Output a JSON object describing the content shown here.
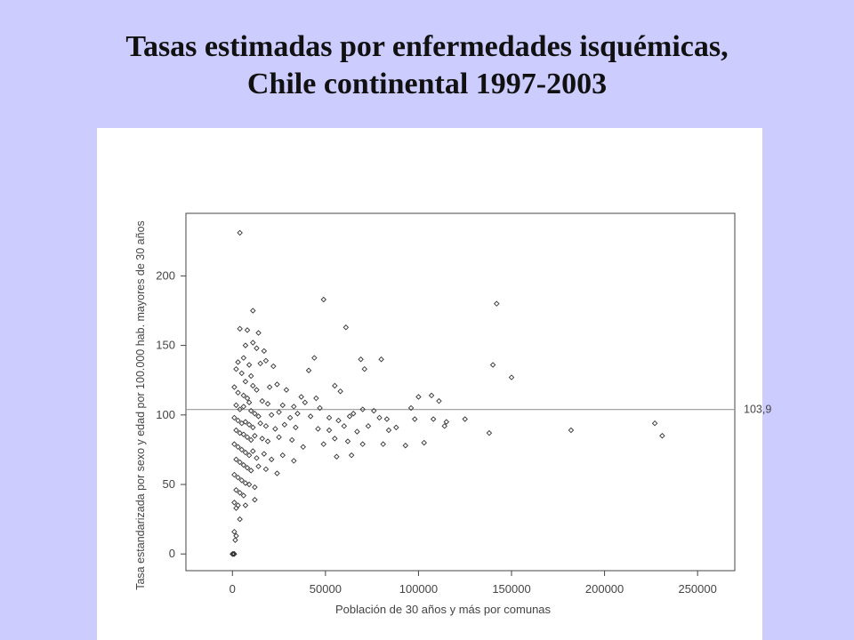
{
  "title_line1": "Tasas estimadas por enfermedades isquémicas,",
  "title_line2": "Chile continental 1997-2003",
  "chart_data": {
    "type": "scatter",
    "title": "Tasas estimadas por enfermedades isquémicas, Chile continental 1997-2003",
    "xlabel": "Población de 30 años y más por comunas",
    "ylabel": "Tasa estandarizada por sexo y edad por 100.000 hab. mayores de 30 años",
    "xlim": [
      -25000,
      270000
    ],
    "ylim": [
      -12,
      245
    ],
    "x_ticks": [
      0,
      50000,
      100000,
      150000,
      200000,
      250000
    ],
    "y_ticks": [
      0,
      50,
      100,
      150,
      200
    ],
    "reference_line": {
      "y": 103.9,
      "label": "103,9"
    },
    "grid": false,
    "points": [
      [
        4000,
        231
      ],
      [
        49000,
        183
      ],
      [
        142000,
        180
      ],
      [
        11000,
        175
      ],
      [
        61000,
        163
      ],
      [
        4000,
        162
      ],
      [
        8000,
        161
      ],
      [
        14000,
        159
      ],
      [
        11000,
        152
      ],
      [
        7000,
        150
      ],
      [
        13000,
        148
      ],
      [
        17000,
        146
      ],
      [
        18000,
        139
      ],
      [
        6000,
        141
      ],
      [
        3000,
        138
      ],
      [
        9000,
        136
      ],
      [
        15000,
        137
      ],
      [
        22000,
        135
      ],
      [
        44000,
        141
      ],
      [
        41000,
        132
      ],
      [
        69000,
        140
      ],
      [
        80000,
        140
      ],
      [
        71000,
        133
      ],
      [
        140000,
        136
      ],
      [
        150000,
        127
      ],
      [
        2000,
        133
      ],
      [
        5000,
        130
      ],
      [
        10000,
        128
      ],
      [
        7000,
        124
      ],
      [
        11000,
        121
      ],
      [
        13000,
        118
      ],
      [
        20000,
        120
      ],
      [
        24000,
        122
      ],
      [
        29000,
        118
      ],
      [
        37000,
        113
      ],
      [
        45000,
        112
      ],
      [
        55000,
        121
      ],
      [
        58000,
        117
      ],
      [
        1000,
        120
      ],
      [
        3000,
        116
      ],
      [
        6000,
        114
      ],
      [
        8000,
        112
      ],
      [
        9000,
        109
      ],
      [
        16000,
        110
      ],
      [
        19000,
        108
      ],
      [
        27000,
        107
      ],
      [
        33000,
        106
      ],
      [
        39000,
        109
      ],
      [
        47000,
        105
      ],
      [
        65000,
        101
      ],
      [
        70000,
        104
      ],
      [
        76000,
        103
      ],
      [
        100000,
        113
      ],
      [
        107000,
        114
      ],
      [
        111000,
        110
      ],
      [
        96000,
        105
      ],
      [
        2000,
        107
      ],
      [
        4000,
        104
      ],
      [
        6000,
        106
      ],
      [
        10000,
        103
      ],
      [
        12000,
        101
      ],
      [
        14000,
        99
      ],
      [
        21000,
        100
      ],
      [
        25000,
        102
      ],
      [
        31000,
        98
      ],
      [
        35000,
        101
      ],
      [
        42000,
        99
      ],
      [
        52000,
        98
      ],
      [
        57000,
        96
      ],
      [
        63000,
        99
      ],
      [
        79000,
        98
      ],
      [
        83000,
        97
      ],
      [
        88000,
        91
      ],
      [
        98000,
        97
      ],
      [
        108000,
        97
      ],
      [
        114000,
        92
      ],
      [
        125000,
        97
      ],
      [
        1000,
        98
      ],
      [
        3000,
        96
      ],
      [
        5000,
        94
      ],
      [
        7000,
        95
      ],
      [
        9000,
        93
      ],
      [
        11000,
        91
      ],
      [
        15000,
        94
      ],
      [
        18000,
        92
      ],
      [
        23000,
        90
      ],
      [
        28000,
        93
      ],
      [
        34000,
        91
      ],
      [
        46000,
        90
      ],
      [
        52000,
        89
      ],
      [
        60000,
        92
      ],
      [
        67000,
        88
      ],
      [
        73000,
        92
      ],
      [
        84000,
        89
      ],
      [
        115000,
        95
      ],
      [
        138000,
        87
      ],
      [
        182000,
        89
      ],
      [
        227000,
        94
      ],
      [
        231000,
        85
      ],
      [
        2000,
        89
      ],
      [
        4000,
        87
      ],
      [
        6000,
        86
      ],
      [
        8000,
        84
      ],
      [
        10000,
        82
      ],
      [
        12000,
        85
      ],
      [
        16000,
        83
      ],
      [
        19000,
        81
      ],
      [
        25000,
        84
      ],
      [
        32000,
        82
      ],
      [
        38000,
        77
      ],
      [
        49000,
        79
      ],
      [
        55000,
        83
      ],
      [
        62000,
        81
      ],
      [
        70000,
        79
      ],
      [
        81000,
        79
      ],
      [
        93000,
        78
      ],
      [
        103000,
        80
      ],
      [
        1000,
        79
      ],
      [
        3000,
        77
      ],
      [
        5000,
        75
      ],
      [
        7000,
        73
      ],
      [
        9000,
        71
      ],
      [
        11000,
        74
      ],
      [
        13000,
        69
      ],
      [
        17000,
        72
      ],
      [
        21000,
        68
      ],
      [
        27000,
        71
      ],
      [
        33000,
        67
      ],
      [
        56000,
        70
      ],
      [
        64000,
        71
      ],
      [
        2000,
        68
      ],
      [
        4000,
        66
      ],
      [
        6000,
        64
      ],
      [
        8000,
        62
      ],
      [
        10000,
        60
      ],
      [
        14000,
        63
      ],
      [
        18000,
        61
      ],
      [
        24000,
        58
      ],
      [
        1000,
        57
      ],
      [
        3000,
        55
      ],
      [
        5000,
        53
      ],
      [
        7000,
        51
      ],
      [
        9000,
        50
      ],
      [
        12000,
        48
      ],
      [
        2000,
        46
      ],
      [
        4000,
        44
      ],
      [
        6000,
        42
      ],
      [
        12000,
        39
      ],
      [
        1000,
        37
      ],
      [
        3000,
        35
      ],
      [
        7000,
        35
      ],
      [
        2000,
        33
      ],
      [
        4000,
        25
      ],
      [
        1000,
        16
      ],
      [
        2000,
        13
      ],
      [
        1500,
        10
      ],
      [
        0,
        0
      ],
      [
        500,
        0
      ],
      [
        1000,
        0
      ]
    ]
  }
}
